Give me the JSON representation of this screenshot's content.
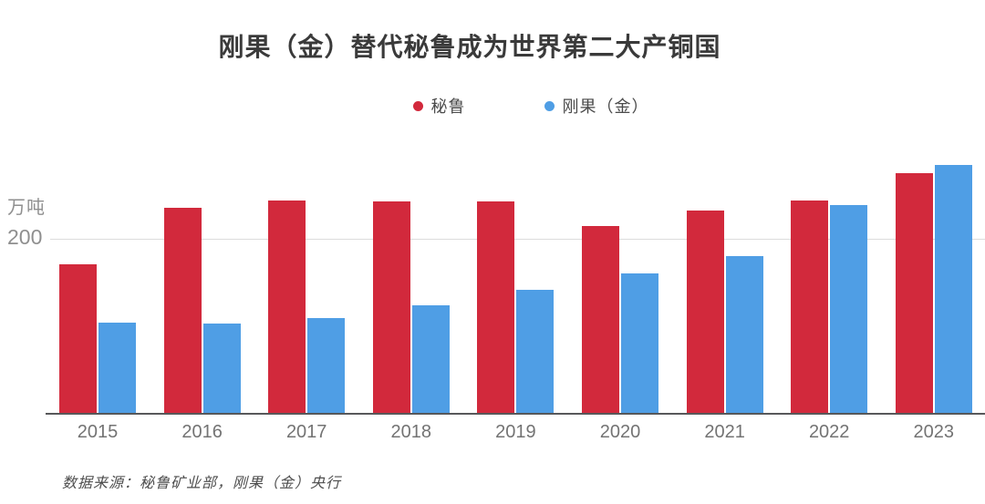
{
  "title": "刚果（金）替代秘鲁成为世界第二大产铜国",
  "legend": {
    "items": [
      {
        "label": "秘鲁",
        "color": "#d2293c"
      },
      {
        "label": "刚果（金）",
        "color": "#4f9ee5"
      }
    ]
  },
  "y_axis": {
    "unit_label": "万吨",
    "tick_label": "200",
    "tick_value": 200
  },
  "source_note": "数据来源：秘鲁矿业部，刚果（金）央行",
  "colors": {
    "peru_red": "#d2293c",
    "congo_blue": "#4f9ee5",
    "gridline": "#dcdcdc",
    "axis_line": "#57585a"
  },
  "chart_data": {
    "type": "bar",
    "title": "刚果（金）替代秘鲁成为世界第二大产铜国",
    "categories": [
      "2015",
      "2016",
      "2017",
      "2018",
      "2019",
      "2020",
      "2021",
      "2022",
      "2023"
    ],
    "series": [
      {
        "name": "秘鲁",
        "color": "#d2293c",
        "values": [
          170,
          235,
          244,
          243,
          243,
          214,
          232,
          244,
          275
        ]
      },
      {
        "name": "刚果（金）",
        "color": "#4f9ee5",
        "values": [
          104,
          102,
          109,
          123,
          141,
          160,
          180,
          239,
          284
        ]
      }
    ],
    "xlabel": "",
    "ylabel": "万吨",
    "ylim": [
      0,
      296
    ],
    "grid_values": [
      200
    ],
    "grid_on": true,
    "legend_position": "top"
  }
}
